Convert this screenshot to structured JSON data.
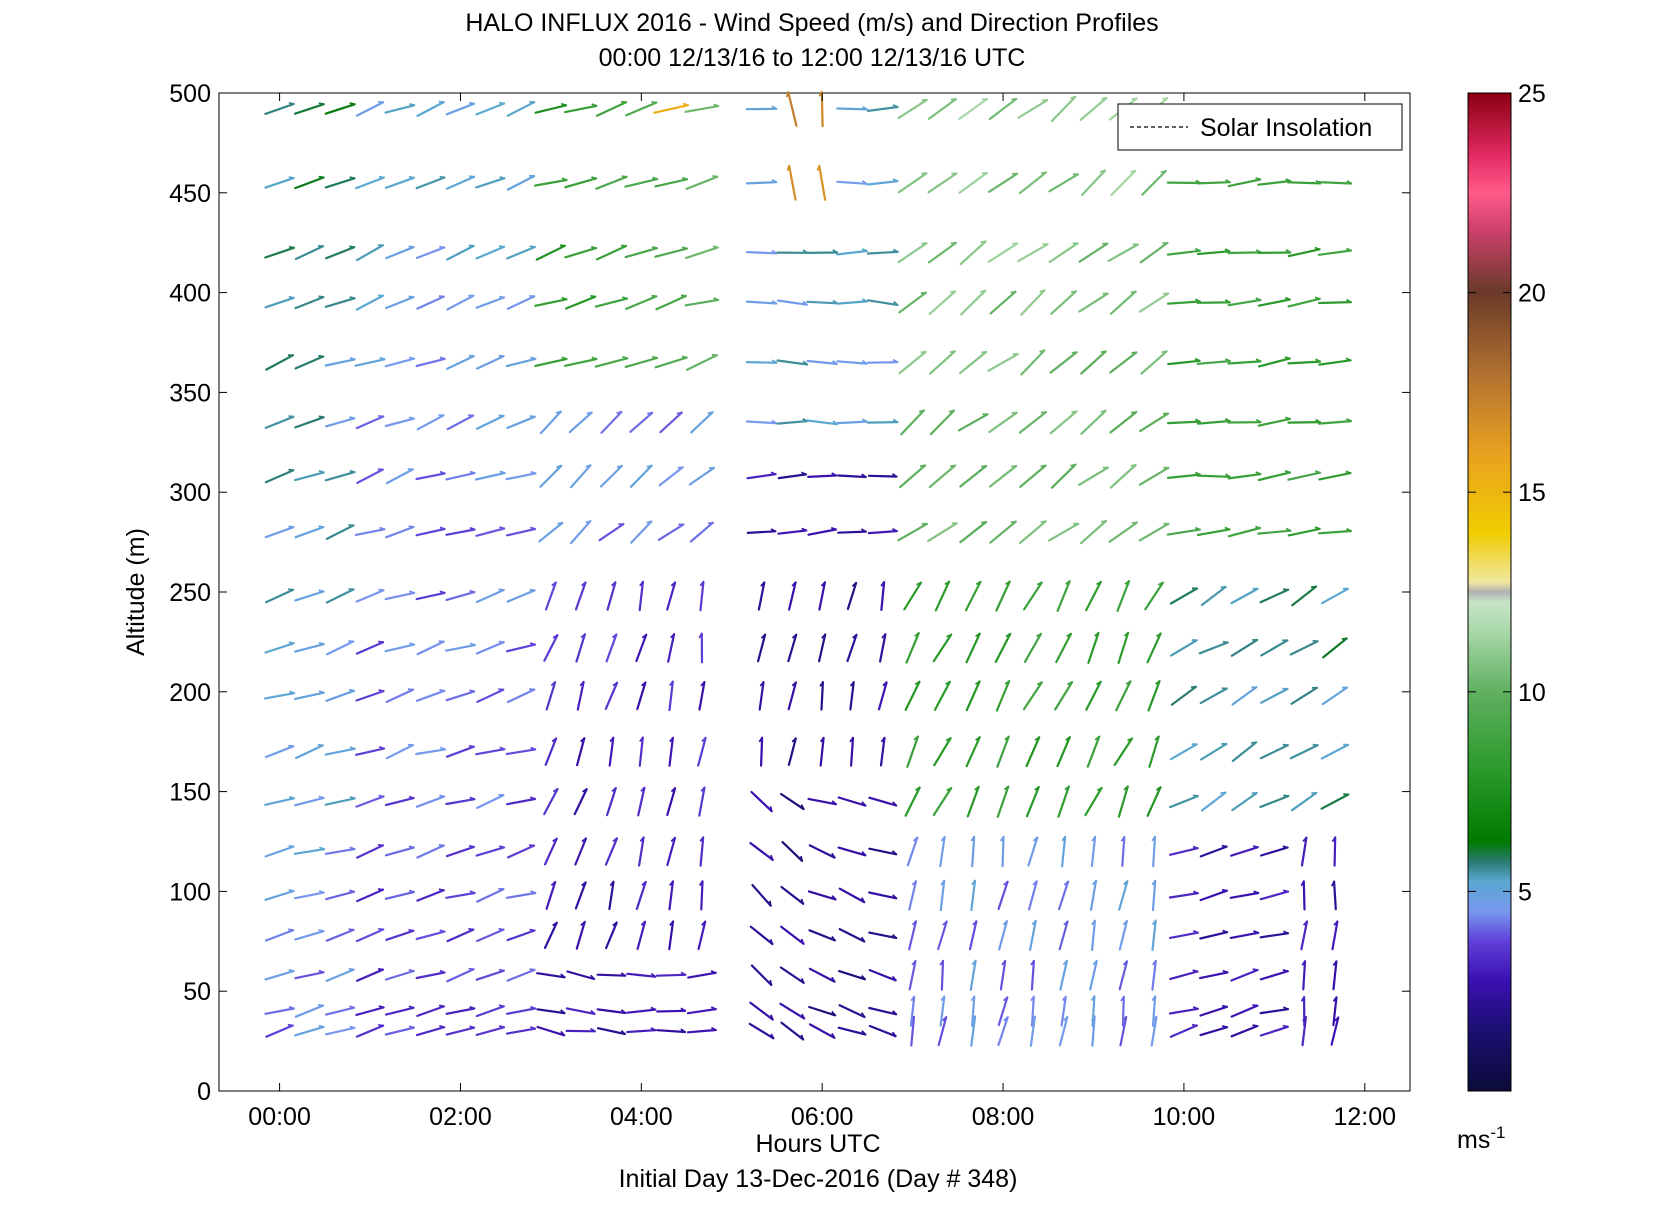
{
  "figure": {
    "title_line1": "HALO INFLUX 2016 - Wind Speed (m/s) and Direction Profiles",
    "title_line2": "00:00 12/13/16 to 12:00 12/13/16  UTC",
    "footer": "Initial Day 13-Dec-2016 (Day # 348)",
    "colorbar_unit": "ms",
    "colorbar_unit_exponent": "-1",
    "colorbar_ticks": [
      "5",
      "10",
      "15",
      "20",
      "25"
    ]
  },
  "chart_data": {
    "type": "scatter",
    "mark": "wind-barb",
    "title": "HALO INFLUX 2016 - Wind Speed (m/s) and Direction Profiles",
    "xlabel": "Hours UTC",
    "ylabel": "Altitude (m)",
    "x_ticks": [
      "00:00",
      "02:00",
      "04:00",
      "06:00",
      "08:00",
      "10:00",
      "12:00"
    ],
    "x_tick_values": [
      0,
      2,
      4,
      6,
      8,
      10,
      12
    ],
    "y_ticks": [
      0,
      50,
      100,
      150,
      200,
      250,
      300,
      350,
      400,
      450,
      500
    ],
    "xlim": [
      -0.67,
      12.5
    ],
    "ylim": [
      0,
      500
    ],
    "legend": {
      "entries": [
        "Solar Insolation"
      ],
      "placement": "top-right",
      "style": "dashed"
    },
    "colorbar": {
      "label": "ms-1",
      "range": [
        0,
        25
      ],
      "ticks": [
        5,
        10,
        15,
        20,
        25
      ]
    },
    "times": [
      0.0,
      0.33,
      0.67,
      1.0,
      1.33,
      1.67,
      2.0,
      2.33,
      2.67,
      3.0,
      3.33,
      3.67,
      4.0,
      4.33,
      4.67,
      5.0,
      5.33,
      5.67,
      6.0,
      6.33,
      6.67,
      7.0,
      7.33,
      7.67,
      8.0,
      8.33,
      8.67,
      9.0,
      9.33,
      9.67,
      10.0,
      10.33,
      10.67,
      11.0,
      11.33,
      11.67
    ],
    "altitudes": [
      30,
      40,
      58,
      78,
      98,
      120,
      145,
      170,
      198,
      222,
      248,
      280,
      308,
      335,
      365,
      395,
      420,
      455,
      492
    ],
    "missing_times": [
      5.0
    ],
    "note_gap": "no data near 05:00"
  },
  "colors": {
    "axis": "#000000",
    "background": "#ffffff"
  }
}
